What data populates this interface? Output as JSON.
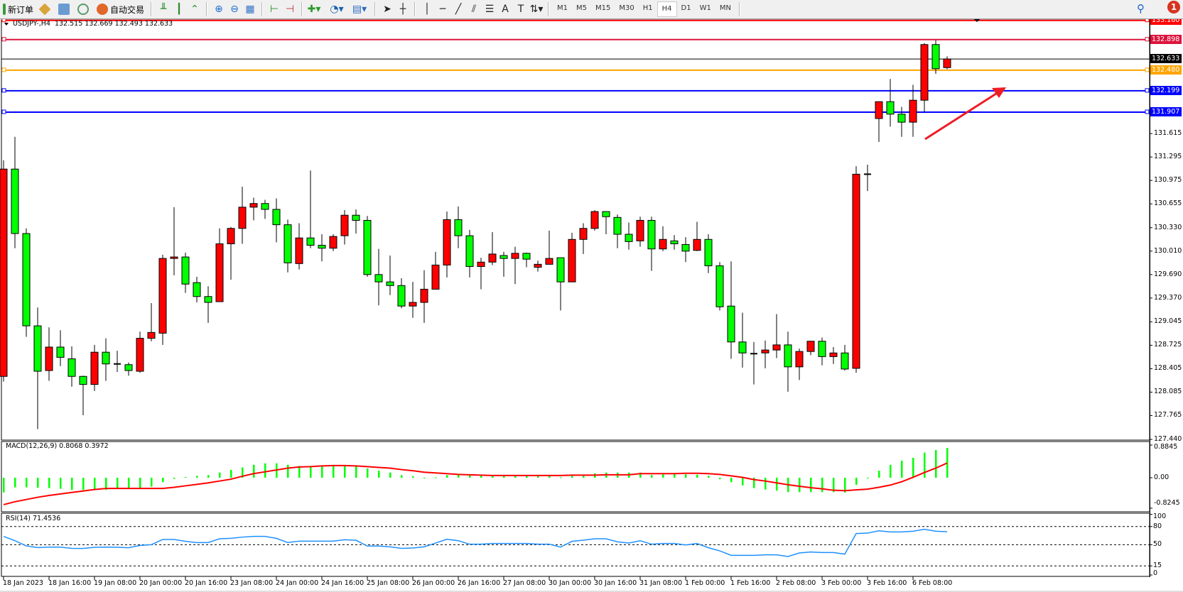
{
  "toolbar": {
    "new_order": "新订单",
    "auto_trading": "自动交易",
    "icons": [
      "new-order-icon",
      "metaeditor-icon",
      "terminal-icon",
      "signals-icon",
      "auto-trading-icon",
      "bar-chart-icon",
      "candlestick-icon",
      "line-chart-icon",
      "zoom-in-icon",
      "zoom-out-icon",
      "tile-windows-icon",
      "chart-shift-icon",
      "autoscroll-icon",
      "indicators-icon",
      "periods-icon",
      "templates-icon",
      "cursor-icon",
      "crosshair-icon",
      "vertical-line-icon",
      "horizontal-line-icon",
      "trendline-icon",
      "fibonacci-icon",
      "fibo-channel-icon",
      "text-icon",
      "text-label-icon",
      "arrows-icon"
    ],
    "text_tool": "A",
    "timeframes": [
      "M1",
      "M5",
      "M15",
      "M30",
      "H1",
      "H4",
      "D1",
      "W1",
      "MN"
    ],
    "active_timeframe": "H4",
    "notification_count": "1"
  },
  "chart": {
    "symbol_header": "USDJPY-,H4  132.515 132.669 132.493 132.633",
    "bull_color": "#ff0000",
    "bear_color": "#00ff00",
    "price_ticks": [
      "131.615",
      "131.295",
      "130.975",
      "130.655",
      "130.330",
      "130.010",
      "129.690",
      "129.370",
      "129.045",
      "128.725",
      "128.405",
      "128.085",
      "127.765",
      "127.440"
    ],
    "price_tick_values": [
      131.615,
      131.295,
      130.975,
      130.655,
      130.33,
      130.01,
      129.69,
      129.37,
      129.045,
      128.725,
      128.405,
      128.085,
      127.765,
      127.44
    ],
    "hlines": [
      {
        "label": "133.160",
        "value": 133.16,
        "color": "#ff0000"
      },
      {
        "label": "132.898",
        "value": 132.898,
        "color": "#dc143c"
      },
      {
        "label": "132.633",
        "value": 132.633,
        "color": "#000000"
      },
      {
        "label": "132.480",
        "value": 132.48,
        "color": "#ffa500"
      },
      {
        "label": "132.199",
        "value": 132.199,
        "color": "#0000ff"
      },
      {
        "label": "131.907",
        "value": 131.907,
        "color": "#0000ff"
      }
    ],
    "arrow_color": "#ee1c24",
    "time_labels": [
      "18 Jan 2023",
      "18 Jan 16:00",
      "19 Jan 08:00",
      "20 Jan 00:00",
      "20 Jan 16:00",
      "23 Jan 08:00",
      "24 Jan 00:00",
      "24 Jan 16:00",
      "25 Jan 08:00",
      "26 Jan 00:00",
      "26 Jan 16:00",
      "27 Jan 08:00",
      "30 Jan 00:00",
      "30 Jan 16:00",
      "31 Jan 08:00",
      "1 Feb 00:00",
      "1 Feb 16:00",
      "2 Feb 08:00",
      "3 Feb 00:00",
      "3 Feb 16:00",
      "6 Feb 08:00"
    ]
  },
  "macd": {
    "header": "MACD(12,26,9) 0.8068 0.3972",
    "ticks": [
      "0.8845",
      "0.00",
      "-0.8245"
    ],
    "tick_values": [
      0.8845,
      0,
      -0.8245
    ],
    "hist_color": "#00ff00",
    "signal_color": "#ff0000"
  },
  "rsi": {
    "header": "RSI(14) 71.4536",
    "ticks": [
      "100",
      "80",
      "50",
      "15",
      "0"
    ],
    "tick_values": [
      100,
      80,
      50,
      15,
      0
    ],
    "levels": [
      80,
      50,
      15
    ],
    "line_color": "#1e90ff"
  },
  "chart_data": {
    "type": "candlestick",
    "symbol": "USDJPY-",
    "timeframe": "H4",
    "ylim": [
      127.44,
      133.16
    ],
    "ohlc": [
      [
        128.3,
        131.25,
        128.23,
        131.13
      ],
      [
        131.13,
        131.57,
        130.05,
        130.25
      ],
      [
        130.25,
        130.32,
        128.84,
        128.99
      ],
      [
        128.99,
        129.24,
        127.58,
        128.37
      ],
      [
        128.38,
        128.97,
        128.24,
        128.7
      ],
      [
        128.7,
        128.93,
        128.44,
        128.56
      ],
      [
        128.54,
        128.71,
        128.16,
        128.3
      ],
      [
        128.3,
        128.31,
        127.77,
        128.19
      ],
      [
        128.19,
        128.73,
        128.1,
        128.63
      ],
      [
        128.63,
        128.82,
        128.24,
        128.47
      ],
      [
        128.47,
        128.65,
        128.36,
        128.47
      ],
      [
        128.46,
        128.49,
        128.31,
        128.38
      ],
      [
        128.37,
        128.91,
        128.35,
        128.82
      ],
      [
        128.82,
        129.3,
        128.78,
        128.9
      ],
      [
        128.89,
        129.96,
        128.73,
        129.91
      ],
      [
        129.91,
        130.61,
        129.68,
        129.93
      ],
      [
        129.93,
        129.99,
        129.44,
        129.56
      ],
      [
        129.58,
        129.66,
        129.31,
        129.39
      ],
      [
        129.39,
        129.53,
        129.03,
        129.31
      ],
      [
        129.32,
        130.32,
        129.32,
        130.11
      ],
      [
        130.11,
        130.34,
        129.62,
        130.32
      ],
      [
        130.32,
        130.89,
        130.11,
        130.61
      ],
      [
        130.61,
        130.74,
        130.43,
        130.66
      ],
      [
        130.66,
        130.71,
        130.45,
        130.58
      ],
      [
        130.58,
        130.73,
        130.13,
        130.37
      ],
      [
        130.37,
        130.44,
        129.72,
        129.85
      ],
      [
        129.84,
        130.39,
        129.76,
        130.19
      ],
      [
        130.19,
        131.11,
        130.05,
        130.09
      ],
      [
        130.09,
        130.24,
        129.87,
        130.05
      ],
      [
        130.05,
        130.24,
        130.01,
        130.21
      ],
      [
        130.22,
        130.57,
        130.1,
        130.5
      ],
      [
        130.5,
        130.58,
        130.25,
        130.43
      ],
      [
        130.43,
        130.49,
        129.66,
        129.69
      ],
      [
        129.69,
        130.04,
        129.27,
        129.59
      ],
      [
        129.59,
        129.95,
        129.41,
        129.54
      ],
      [
        129.54,
        129.64,
        129.23,
        129.26
      ],
      [
        129.26,
        129.59,
        129.1,
        129.31
      ],
      [
        129.31,
        129.75,
        129.03,
        129.49
      ],
      [
        129.49,
        130.0,
        129.49,
        129.82
      ],
      [
        129.82,
        130.55,
        129.65,
        130.44
      ],
      [
        130.44,
        130.62,
        130.05,
        130.22
      ],
      [
        130.22,
        130.3,
        129.65,
        129.8
      ],
      [
        129.8,
        129.92,
        129.49,
        129.86
      ],
      [
        129.86,
        130.27,
        129.82,
        129.97
      ],
      [
        129.95,
        130.0,
        129.66,
        129.91
      ],
      [
        129.91,
        130.07,
        129.56,
        129.98
      ],
      [
        129.98,
        129.99,
        129.79,
        129.9
      ],
      [
        129.79,
        129.88,
        129.73,
        129.83
      ],
      [
        129.83,
        130.29,
        129.83,
        129.91
      ],
      [
        129.92,
        129.92,
        129.2,
        129.59
      ],
      [
        129.59,
        130.26,
        129.59,
        130.17
      ],
      [
        130.17,
        130.39,
        129.97,
        130.32
      ],
      [
        130.32,
        130.57,
        130.29,
        130.55
      ],
      [
        130.55,
        130.55,
        130.24,
        130.48
      ],
      [
        130.47,
        130.51,
        130.05,
        130.24
      ],
      [
        130.24,
        130.4,
        130.03,
        130.14
      ],
      [
        130.15,
        130.48,
        130.07,
        130.43
      ],
      [
        130.43,
        130.48,
        129.74,
        130.04
      ],
      [
        130.04,
        130.35,
        130.01,
        130.17
      ],
      [
        130.15,
        130.23,
        130.03,
        130.11
      ],
      [
        130.1,
        130.2,
        129.86,
        130.01
      ],
      [
        130.02,
        130.41,
        130.01,
        130.17
      ],
      [
        130.17,
        130.24,
        129.71,
        129.81
      ],
      [
        129.81,
        129.86,
        129.2,
        129.25
      ],
      [
        129.26,
        129.87,
        128.54,
        128.77
      ],
      [
        128.77,
        129.17,
        128.42,
        128.62
      ],
      [
        128.61,
        128.77,
        128.19,
        128.61
      ],
      [
        128.62,
        128.79,
        128.41,
        128.66
      ],
      [
        128.66,
        129.15,
        128.55,
        128.73
      ],
      [
        128.73,
        128.91,
        128.09,
        128.43
      ],
      [
        128.43,
        128.68,
        128.25,
        128.64
      ],
      [
        128.64,
        128.78,
        128.59,
        128.78
      ],
      [
        128.78,
        128.83,
        128.45,
        128.57
      ],
      [
        128.57,
        128.7,
        128.47,
        128.62
      ],
      [
        128.62,
        128.73,
        128.38,
        128.4
      ],
      [
        128.41,
        131.17,
        128.35,
        131.06
      ],
      [
        131.06,
        131.19,
        130.83,
        131.06
      ],
      [
        131.82,
        132.05,
        131.5,
        132.05
      ],
      [
        132.05,
        132.36,
        131.71,
        131.88
      ],
      [
        131.88,
        131.98,
        131.57,
        131.77
      ],
      [
        131.77,
        132.28,
        131.57,
        132.07
      ],
      [
        132.07,
        132.85,
        131.91,
        132.83
      ],
      [
        132.83,
        132.89,
        132.43,
        132.5
      ],
      [
        132.515,
        132.669,
        132.493,
        132.633
      ]
    ],
    "macd_histogram": [
      -0.4,
      -0.26,
      -0.26,
      -0.27,
      -0.28,
      -0.3,
      -0.33,
      -0.33,
      -0.33,
      -0.33,
      -0.29,
      -0.28,
      -0.28,
      -0.24,
      -0.12,
      -0.03,
      0.02,
      0.05,
      0.07,
      0.14,
      0.21,
      0.28,
      0.35,
      0.39,
      0.39,
      0.35,
      0.32,
      0.32,
      0.32,
      0.32,
      0.33,
      0.32,
      0.25,
      0.19,
      0.14,
      0.07,
      0.04,
      -0.01,
      0.01,
      0.07,
      0.08,
      0.07,
      0.05,
      0.05,
      0.05,
      0.05,
      0.05,
      0.05,
      0.05,
      0.01,
      0.05,
      0.05,
      0.12,
      0.14,
      0.14,
      0.14,
      0.14,
      0.07,
      0.09,
      0.11,
      0.09,
      0.08,
      0.05,
      -0.04,
      -0.12,
      -0.21,
      -0.28,
      -0.32,
      -0.35,
      -0.39,
      -0.39,
      -0.39,
      -0.39,
      -0.39,
      -0.4,
      -0.19,
      -0.02,
      0.19,
      0.35,
      0.46,
      0.54,
      0.68,
      0.75,
      0.8068
    ],
    "macd_signal": [
      -0.73,
      -0.65,
      -0.59,
      -0.53,
      -0.48,
      -0.44,
      -0.4,
      -0.36,
      -0.32,
      -0.29,
      -0.29,
      -0.29,
      -0.29,
      -0.29,
      -0.29,
      -0.26,
      -0.22,
      -0.18,
      -0.14,
      -0.09,
      -0.04,
      0.04,
      0.11,
      0.16,
      0.21,
      0.26,
      0.29,
      0.3,
      0.32,
      0.33,
      0.33,
      0.32,
      0.3,
      0.28,
      0.26,
      0.22,
      0.19,
      0.15,
      0.13,
      0.11,
      0.09,
      0.08,
      0.07,
      0.06,
      0.06,
      0.06,
      0.06,
      0.06,
      0.06,
      0.06,
      0.07,
      0.07,
      0.07,
      0.08,
      0.08,
      0.08,
      0.11,
      0.11,
      0.11,
      0.11,
      0.12,
      0.12,
      0.11,
      0.09,
      0.05,
      0.01,
      -0.05,
      -0.09,
      -0.14,
      -0.19,
      -0.23,
      -0.27,
      -0.3,
      -0.34,
      -0.35,
      -0.33,
      -0.31,
      -0.26,
      -0.2,
      -0.11,
      0.01,
      0.14,
      0.26,
      0.3972
    ],
    "rsi": [
      63.7,
      56.6,
      48.0,
      45.3,
      46.0,
      46.0,
      44.0,
      43.8,
      45.7,
      46.0,
      45.7,
      45.0,
      48.8,
      50.0,
      58.6,
      58.6,
      55.5,
      53.5,
      53.5,
      59.8,
      60.5,
      62.5,
      63.7,
      63.7,
      60.5,
      53.5,
      55.9,
      55.9,
      55.9,
      55.9,
      58.2,
      57.4,
      47.7,
      47.7,
      46.5,
      44.0,
      44.5,
      46.5,
      52.7,
      59.0,
      56.6,
      50.8,
      50.8,
      52.0,
      52.0,
      52.0,
      52.0,
      50.8,
      50.8,
      46.0,
      55.5,
      57.4,
      59.8,
      59.8,
      54.7,
      52.7,
      56.6,
      50.8,
      52.0,
      52.0,
      49.6,
      52.0,
      45.0,
      39.8,
      32.4,
      32.4,
      32.4,
      33.2,
      33.2,
      30.5,
      36.3,
      37.9,
      37.1,
      37.1,
      34.4,
      68.4,
      69.1,
      73.0,
      71.1,
      71.1,
      72.3,
      75.4,
      72.3,
      71.4536
    ]
  }
}
